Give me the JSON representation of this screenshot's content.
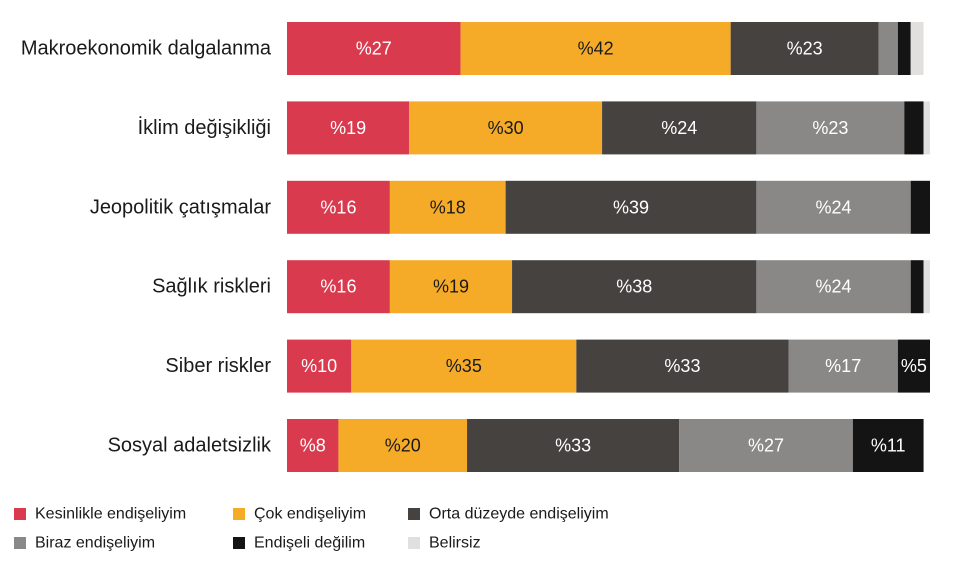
{
  "chart_data": {
    "type": "bar",
    "orientation": "horizontal",
    "stacked": true,
    "categories": [
      "Makroekonomik dalgalanma",
      "İklim değişikliği",
      "Jeopolitik çatışmalar",
      "Sağlık riskleri",
      "Siber riskler",
      "Sosyal adaletsizlik"
    ],
    "series": [
      {
        "name": "Kesinlikle endişeliyim",
        "color": "#d93a4e",
        "label_color": "#ffffff",
        "values": [
          27,
          19,
          16,
          16,
          10,
          8
        ],
        "labels": [
          "%27",
          "%19",
          "%16",
          "%16",
          "%10",
          "%8"
        ]
      },
      {
        "name": "Çok endişeliyim",
        "color": "#f5ab28",
        "label_color": "#1a1a1a",
        "values": [
          42,
          30,
          18,
          19,
          35,
          20
        ],
        "labels": [
          "%42",
          "%30",
          "%18",
          "%19",
          "%35",
          "%20"
        ]
      },
      {
        "name": "Orta düzeyde endişeliyim",
        "color": "#454240",
        "label_color": "#ffffff",
        "values": [
          23,
          24,
          39,
          38,
          33,
          33
        ],
        "labels": [
          "%23",
          "%24",
          "%39",
          "%38",
          "%33",
          "%33"
        ]
      },
      {
        "name": "Biraz endişeliyim",
        "color": "#8a8886",
        "label_color": "#ffffff",
        "values": [
          3,
          23,
          24,
          24,
          17,
          27
        ],
        "labels": [
          "",
          "%23",
          "%24",
          "%24",
          "%17",
          "%27"
        ]
      },
      {
        "name": "Endişeli değilim",
        "color": "#141414",
        "label_color": "#ffffff",
        "values": [
          2,
          3,
          3,
          2,
          5,
          11
        ],
        "labels": [
          "",
          "",
          "",
          "",
          "%5",
          "%11"
        ]
      },
      {
        "name": "Belirsiz",
        "color": "#e2e0de",
        "label_color": "#1a1a1a",
        "values": [
          2,
          1,
          0,
          1,
          0,
          0
        ],
        "labels": [
          "",
          "",
          "",
          "",
          "",
          ""
        ]
      }
    ],
    "xlim": [
      0,
      100
    ],
    "grid": false,
    "legend_position": "bottom-left"
  }
}
